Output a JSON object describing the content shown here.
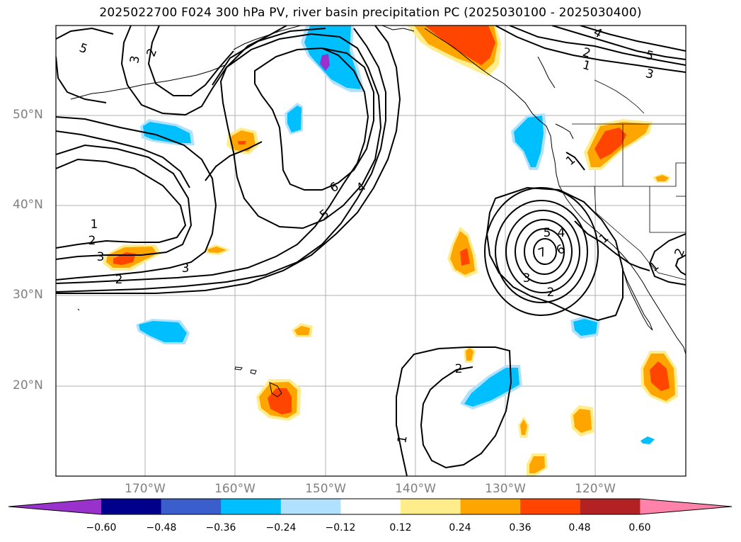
{
  "title": "2025022700 F024 300 hPa PV, river basin precipitation PC (2025030100 - 2025030400)",
  "lat_labels": [
    "50°N",
    "40°N",
    "30°N",
    "20°N"
  ],
  "lon_labels": [
    "170°W",
    "160°W",
    "150°W",
    "140°W",
    "130°W",
    "120°W"
  ],
  "colorbar": {
    "ticks": [
      "−0.60",
      "−0.48",
      "−0.36",
      "−0.24",
      "−0.12",
      "0.12",
      "0.24",
      "0.36",
      "0.48",
      "0.60"
    ],
    "colors": [
      "#9932cc",
      "#00008b",
      "#3a5fcd",
      "#00bfff",
      "#b0e2ff",
      "#ffffff",
      "#ffec8b",
      "#ffa500",
      "#ff4500",
      "#b22222",
      "#ff82ab"
    ]
  },
  "contour_labels": [
    "5",
    "3",
    "2",
    "6",
    "4",
    "5",
    "1",
    "2",
    "3",
    "3",
    "2",
    "2",
    "1",
    "4",
    "5",
    "3",
    "1",
    "1",
    "5",
    "4",
    "7",
    "6",
    "3",
    "2",
    "1",
    "2",
    "2",
    "1"
  ]
}
